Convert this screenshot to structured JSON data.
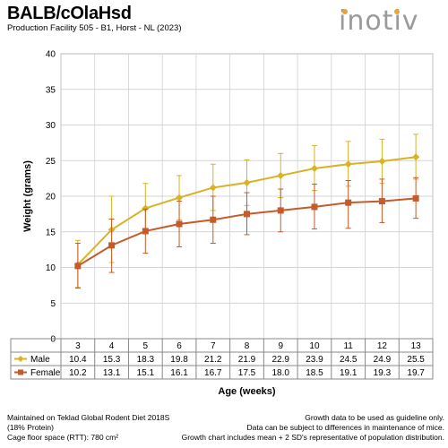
{
  "header": {
    "title": "BALB/cOlaHsd",
    "subtitle": "Production Facility 505 - B1, Horst - NL (2023)",
    "logo_text": "inotiv"
  },
  "chart_data": {
    "type": "line",
    "title": "",
    "xlabel": "Age (weeks)",
    "ylabel": "Weight (grams)",
    "ylim": [
      0,
      40
    ],
    "yticks": [
      0,
      5,
      10,
      15,
      20,
      25,
      30,
      35,
      40
    ],
    "grid": true,
    "categories": [
      "3",
      "4",
      "5",
      "6",
      "7",
      "8",
      "9",
      "10",
      "11",
      "12",
      "13"
    ],
    "series": [
      {
        "name": "Male",
        "color": "#d9b225",
        "marker": "diamond",
        "values": [
          10.4,
          15.3,
          18.3,
          19.8,
          21.2,
          21.9,
          22.9,
          23.9,
          24.5,
          24.9,
          25.5
        ],
        "error_upper": [
          3.4,
          4.7,
          3.5,
          3.1,
          3.3,
          3.2,
          3.1,
          3.2,
          3.2,
          3.1,
          3.2
        ],
        "error_lower": [
          3.2,
          4.6,
          3.5,
          3.1,
          3.2,
          3.2,
          3.1,
          3.1,
          3.1,
          3.1,
          3.1
        ]
      },
      {
        "name": "Female",
        "color": "#c55a2a",
        "marker": "square",
        "values": [
          10.2,
          13.1,
          15.1,
          16.1,
          16.7,
          17.5,
          18.0,
          18.5,
          19.1,
          19.3,
          19.7
        ],
        "error_upper": [
          3.2,
          3.7,
          3.1,
          3.2,
          3.3,
          3.0,
          3.0,
          3.2,
          3.1,
          3.1,
          2.9
        ],
        "error_lower": [
          3.1,
          3.8,
          3.1,
          3.2,
          3.3,
          2.9,
          3.0,
          3.1,
          3.6,
          3.0,
          2.8
        ]
      }
    ],
    "table": true
  },
  "footer": {
    "left": [
      "Maintained on Teklad Global Rodent Diet 2018S",
      "(18% Protein)",
      "Cage floor space (RTT): 780 cm²"
    ],
    "right": [
      "Growth data to be used as guideline only.",
      "Data can be subject to differences in maintenance of mice.",
      "Growth chart includes mean + 2 SD's representative of population distribution."
    ]
  }
}
